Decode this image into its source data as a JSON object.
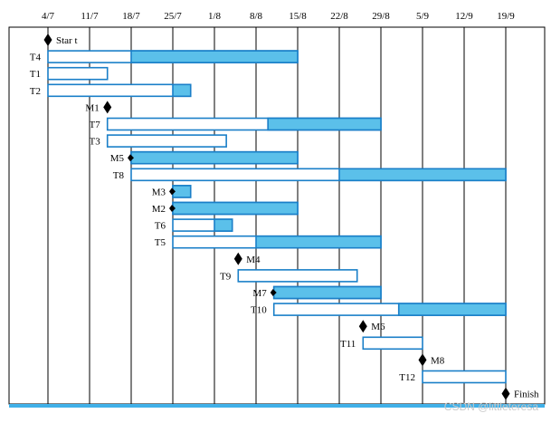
{
  "chart_data": {
    "type": "gantt",
    "dates": [
      "4/7",
      "11/7",
      "18/7",
      "25/7",
      "1/8",
      "8/8",
      "15/8",
      "22/8",
      "29/8",
      "5/9",
      "12/9",
      "19/9"
    ],
    "grid": true,
    "colors": {
      "fill": "#5bc0ea",
      "outline": "#1a7fc8",
      "frame": "#000000",
      "bottom_border": "#40b0e8"
    },
    "rows": [
      {
        "kind": "milestone",
        "label": "Star t",
        "label_side": "right",
        "at": "4/7"
      },
      {
        "kind": "task",
        "label": "T4",
        "start": "4/7",
        "end": "15/8",
        "filled_from": "18/7"
      },
      {
        "kind": "task",
        "label": "T1",
        "start": "4/7",
        "end": "14/7",
        "filled_from": null
      },
      {
        "kind": "task",
        "label": "T2",
        "start": "4/7",
        "end": "28/7",
        "filled_from": "25/7"
      },
      {
        "kind": "milestone",
        "label": "M1",
        "label_side": "left",
        "at": "14/7"
      },
      {
        "kind": "task",
        "label": "T7",
        "start": "14/7",
        "end": "29/8",
        "filled_from": "10/8"
      },
      {
        "kind": "task",
        "label": "T3",
        "start": "14/7",
        "end": "3/8",
        "filled_from": null
      },
      {
        "kind": "task",
        "label": "M5",
        "start": "18/7",
        "end": "15/8",
        "filled_from": "18/7"
      },
      {
        "kind": "task",
        "label": "T8",
        "start": "18/7",
        "end": "19/9",
        "filled_from": "22/8"
      },
      {
        "kind": "task",
        "label": "M3",
        "start": "25/7",
        "end": "28/7",
        "filled_from": "25/7"
      },
      {
        "kind": "task",
        "label": "M2",
        "start": "25/7",
        "end": "15/8",
        "filled_from": "25/7"
      },
      {
        "kind": "task",
        "label": "T6",
        "start": "25/7",
        "end": "4/8",
        "filled_from": "1/8"
      },
      {
        "kind": "task",
        "label": "T5",
        "start": "25/7",
        "end": "29/8",
        "filled_from": "8/8"
      },
      {
        "kind": "milestone",
        "label": "M4",
        "label_side": "right",
        "at": "5/8"
      },
      {
        "kind": "task",
        "label": "T9",
        "start": "5/8",
        "end": "25/8",
        "filled_from": null
      },
      {
        "kind": "task",
        "label": "M7",
        "start": "11/8",
        "end": "29/8",
        "filled_from": "11/8"
      },
      {
        "kind": "task",
        "label": "T10",
        "start": "11/8",
        "end": "19/9",
        "filled_from": "1/9"
      },
      {
        "kind": "milestone",
        "label": "M6",
        "label_side": "right",
        "at": "26/8"
      },
      {
        "kind": "task",
        "label": "T11",
        "start": "26/8",
        "end": "5/9",
        "filled_from": null
      },
      {
        "kind": "milestone",
        "label": "M8",
        "label_side": "right",
        "at": "5/9"
      },
      {
        "kind": "task",
        "label": "T12",
        "start": "5/9",
        "end": "19/9",
        "filled_from": null
      },
      {
        "kind": "milestone",
        "label": "Finish",
        "label_side": "right",
        "at": "19/9"
      }
    ],
    "watermark": "CSDN @littleteresa"
  }
}
